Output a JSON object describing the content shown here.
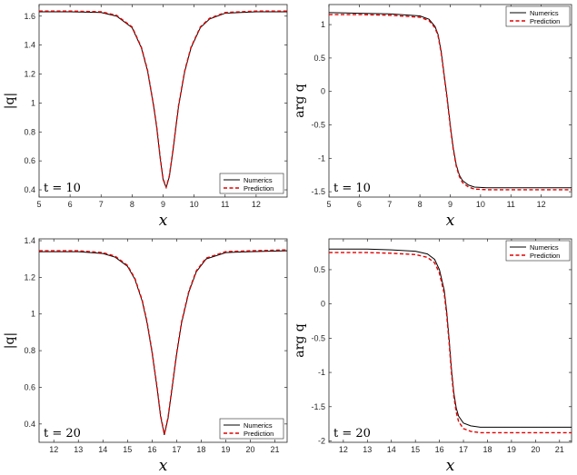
{
  "chart_data": [
    {
      "type": "line",
      "xlabel": "x",
      "ylabel": "|q|",
      "annotation": "t = 10",
      "xlim": [
        5,
        13
      ],
      "ylim": [
        0.35,
        1.68
      ],
      "xticks": [
        "5",
        "6",
        "7",
        "8",
        "9",
        "10",
        "11",
        "12"
      ],
      "yticks": [
        "0.4",
        "0.6",
        "0.8",
        "1",
        "1.2",
        "1.4",
        "1.6"
      ],
      "xtick_values": [
        5,
        6,
        7,
        8,
        9,
        10,
        11,
        12
      ],
      "ytick_values": [
        0.4,
        0.6,
        0.8,
        1.0,
        1.2,
        1.4,
        1.6
      ],
      "legend_position": "bottom-right",
      "series": [
        {
          "name": "Numerics",
          "color": "#000000",
          "style": "solid",
          "x": [
            5,
            6,
            7,
            7.5,
            8,
            8.3,
            8.5,
            8.7,
            8.8,
            8.9,
            9.0,
            9.1,
            9.2,
            9.3,
            9.4,
            9.5,
            9.7,
            9.9,
            10.2,
            10.5,
            11,
            12,
            13
          ],
          "y": [
            1.63,
            1.63,
            1.625,
            1.6,
            1.52,
            1.38,
            1.22,
            0.97,
            0.82,
            0.63,
            0.47,
            0.415,
            0.49,
            0.64,
            0.81,
            0.98,
            1.22,
            1.38,
            1.52,
            1.58,
            1.62,
            1.63,
            1.63
          ]
        },
        {
          "name": "Prediction",
          "color": "#e00000",
          "style": "dashed",
          "x": [
            5,
            6,
            7,
            7.5,
            8,
            8.3,
            8.5,
            8.7,
            8.8,
            8.9,
            9.0,
            9.1,
            9.2,
            9.3,
            9.4,
            9.5,
            9.7,
            9.9,
            10.2,
            10.5,
            11,
            12,
            13
          ],
          "y": [
            1.635,
            1.635,
            1.63,
            1.605,
            1.525,
            1.385,
            1.225,
            0.975,
            0.825,
            0.635,
            0.475,
            0.42,
            0.495,
            0.645,
            0.815,
            0.985,
            1.225,
            1.385,
            1.525,
            1.585,
            1.625,
            1.635,
            1.635
          ]
        }
      ]
    },
    {
      "type": "line",
      "xlabel": "x",
      "ylabel": "arg q",
      "annotation": "t = 10",
      "xlim": [
        5,
        13
      ],
      "ylim": [
        -1.58,
        1.3
      ],
      "xticks": [
        "5",
        "6",
        "7",
        "8",
        "9",
        "10",
        "11",
        "12"
      ],
      "yticks": [
        "-1.5",
        "-1",
        "-0.5",
        "0",
        "0.5",
        "1"
      ],
      "xtick_values": [
        5,
        6,
        7,
        8,
        9,
        10,
        11,
        12
      ],
      "ytick_values": [
        -1.5,
        -1,
        -0.5,
        0,
        0.5,
        1
      ],
      "legend_position": "top-right",
      "series": [
        {
          "name": "Numerics",
          "color": "#000000",
          "style": "solid",
          "x": [
            5,
            6,
            7,
            8,
            8.3,
            8.5,
            8.6,
            8.7,
            8.8,
            8.9,
            9.0,
            9.1,
            9.2,
            9.3,
            9.4,
            9.6,
            9.8,
            10.2,
            11,
            12,
            13
          ],
          "y": [
            1.18,
            1.17,
            1.16,
            1.13,
            1.08,
            0.97,
            0.85,
            0.6,
            0.25,
            -0.1,
            -0.5,
            -0.85,
            -1.1,
            -1.25,
            -1.33,
            -1.4,
            -1.43,
            -1.44,
            -1.44,
            -1.44,
            -1.44
          ]
        },
        {
          "name": "Prediction",
          "color": "#e00000",
          "style": "dashed",
          "x": [
            5,
            6,
            7,
            8,
            8.3,
            8.5,
            8.6,
            8.7,
            8.8,
            8.9,
            9.0,
            9.1,
            9.2,
            9.3,
            9.4,
            9.6,
            9.8,
            10.2,
            11,
            12,
            13
          ],
          "y": [
            1.15,
            1.15,
            1.14,
            1.11,
            1.06,
            0.95,
            0.83,
            0.58,
            0.23,
            -0.12,
            -0.52,
            -0.87,
            -1.12,
            -1.27,
            -1.36,
            -1.43,
            -1.46,
            -1.47,
            -1.47,
            -1.47,
            -1.47
          ]
        }
      ]
    },
    {
      "type": "line",
      "xlabel": "x",
      "ylabel": "|q|",
      "annotation": "t = 20",
      "xlim": [
        11.4,
        21.5
      ],
      "ylim": [
        0.3,
        1.41
      ],
      "xticks": [
        "12",
        "13",
        "14",
        "15",
        "16",
        "17",
        "18",
        "19",
        "20",
        "21"
      ],
      "yticks": [
        "0.4",
        "0.6",
        "0.8",
        "1",
        "1.2",
        "1.4"
      ],
      "xtick_values": [
        12,
        13,
        14,
        15,
        16,
        17,
        18,
        19,
        20,
        21
      ],
      "ytick_values": [
        0.4,
        0.6,
        0.8,
        1.0,
        1.2,
        1.4
      ],
      "legend_position": "bottom-right",
      "series": [
        {
          "name": "Numerics",
          "color": "#000000",
          "style": "solid",
          "x": [
            11.4,
            12,
            13,
            14,
            14.5,
            15,
            15.3,
            15.6,
            15.8,
            16.0,
            16.2,
            16.35,
            16.5,
            16.65,
            16.8,
            17.0,
            17.2,
            17.5,
            17.8,
            18.2,
            19,
            20,
            21.5
          ],
          "y": [
            1.34,
            1.34,
            1.34,
            1.33,
            1.31,
            1.26,
            1.19,
            1.07,
            0.95,
            0.79,
            0.6,
            0.44,
            0.34,
            0.43,
            0.58,
            0.78,
            0.95,
            1.12,
            1.23,
            1.3,
            1.335,
            1.34,
            1.345
          ]
        },
        {
          "name": "Prediction",
          "color": "#e00000",
          "style": "dashed",
          "x": [
            11.4,
            12,
            13,
            14,
            14.5,
            15,
            15.3,
            15.6,
            15.8,
            16.0,
            16.2,
            16.35,
            16.5,
            16.65,
            16.8,
            17.0,
            17.2,
            17.5,
            17.8,
            18.2,
            19,
            20,
            21.5
          ],
          "y": [
            1.345,
            1.345,
            1.345,
            1.335,
            1.315,
            1.265,
            1.195,
            1.075,
            0.955,
            0.795,
            0.605,
            0.445,
            0.345,
            0.435,
            0.585,
            0.785,
            0.955,
            1.125,
            1.235,
            1.305,
            1.34,
            1.345,
            1.35
          ]
        }
      ]
    },
    {
      "type": "line",
      "xlabel": "x",
      "ylabel": "arg q",
      "annotation": "t = 20",
      "xlim": [
        11.4,
        21.5
      ],
      "ylim": [
        -2.02,
        0.95
      ],
      "xticks": [
        "12",
        "13",
        "14",
        "15",
        "16",
        "17",
        "18",
        "19",
        "20",
        "21"
      ],
      "yticks": [
        "-2",
        "-1.5",
        "-1",
        "-0.5",
        "0",
        "0.5"
      ],
      "xtick_values": [
        12,
        13,
        14,
        15,
        16,
        17,
        18,
        19,
        20,
        21
      ],
      "ytick_values": [
        -2,
        -1.5,
        -1,
        -0.5,
        0,
        0.5
      ],
      "legend_position": "top-right",
      "series": [
        {
          "name": "Numerics",
          "color": "#000000",
          "style": "solid",
          "x": [
            11.4,
            12,
            13,
            14,
            15,
            15.5,
            15.8,
            16.0,
            16.2,
            16.3,
            16.4,
            16.5,
            16.6,
            16.7,
            16.8,
            17.0,
            17.3,
            17.7,
            18.5,
            19.5,
            21.5
          ],
          "y": [
            0.8,
            0.8,
            0.8,
            0.79,
            0.77,
            0.73,
            0.65,
            0.5,
            0.2,
            -0.1,
            -0.5,
            -0.95,
            -1.3,
            -1.52,
            -1.64,
            -1.74,
            -1.78,
            -1.8,
            -1.8,
            -1.8,
            -1.8
          ]
        },
        {
          "name": "Prediction",
          "color": "#e00000",
          "style": "dashed",
          "x": [
            11.4,
            12,
            13,
            14,
            15,
            15.5,
            15.8,
            16.0,
            16.2,
            16.3,
            16.4,
            16.5,
            16.6,
            16.7,
            16.8,
            17.0,
            17.3,
            17.7,
            18.5,
            19.5,
            21.5
          ],
          "y": [
            0.75,
            0.75,
            0.75,
            0.74,
            0.72,
            0.68,
            0.6,
            0.45,
            0.15,
            -0.15,
            -0.55,
            -1.0,
            -1.35,
            -1.58,
            -1.72,
            -1.82,
            -1.86,
            -1.88,
            -1.88,
            -1.88,
            -1.88
          ]
        }
      ]
    }
  ]
}
